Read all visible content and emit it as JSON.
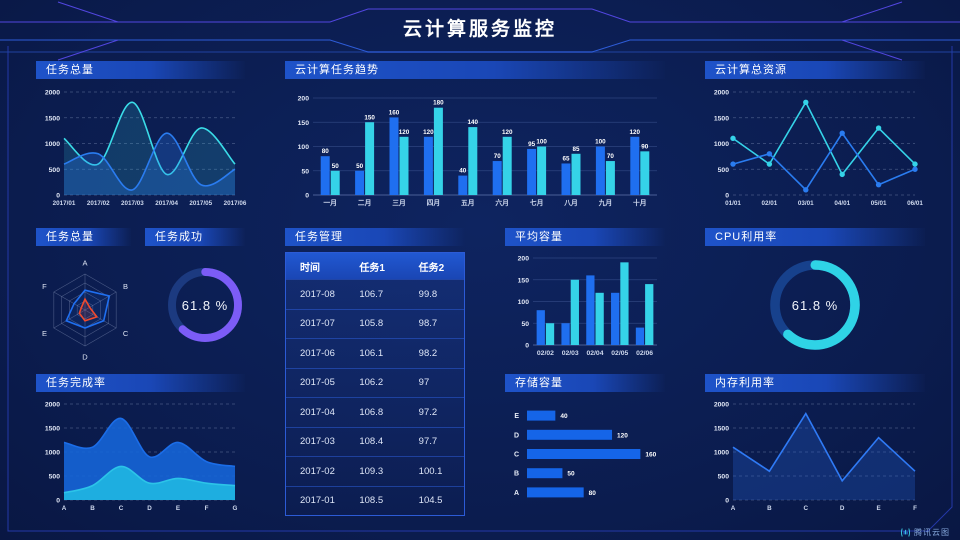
{
  "page_title": "云计算服务监控",
  "footer": {
    "logo_text": "腾讯云图"
  },
  "palette": {
    "blue": "#1f6ff0",
    "cyan": "#35d3e8",
    "purple": "#7c5cf6",
    "red": "#f04a2e",
    "background_navy": "#0c1e52",
    "header_gradient_blue": "#1e53c9"
  },
  "chart_data": [
    {
      "id": "tasks-total-line",
      "type": "line",
      "title": "任务总量",
      "smooth": true,
      "x": [
        "2017/01",
        "2017/02",
        "2017/03",
        "2017/04",
        "2017/05",
        "2017/06"
      ],
      "series": [
        {
          "color": "#3adce8",
          "fill": "rgba(58,220,232,0.16)",
          "values": [
            1100,
            600,
            1800,
            400,
            1300,
            600
          ]
        },
        {
          "color": "#2a7cf0",
          "fill": "rgba(42,124,240,0.28)",
          "values": [
            600,
            800,
            100,
            1200,
            200,
            500
          ]
        }
      ],
      "yticks": [
        0,
        500,
        1000,
        1500,
        2000
      ],
      "ylim": [
        0,
        2000
      ],
      "grid_dashed": true
    },
    {
      "id": "cloud-task-trend-bars",
      "type": "bar",
      "title": "云计算任务趋势",
      "categories": [
        "一月",
        "二月",
        "三月",
        "四月",
        "五月",
        "六月",
        "七月",
        "八月",
        "九月",
        "十月"
      ],
      "series": [
        {
          "color": "#1f6ff0",
          "values": [
            80,
            50,
            160,
            120,
            40,
            70,
            95,
            65,
            100,
            120
          ]
        },
        {
          "color": "#35d3e8",
          "values": [
            50,
            150,
            120,
            180,
            140,
            120,
            100,
            85,
            70,
            90
          ]
        }
      ],
      "yticks": [
        0,
        50,
        100,
        150,
        200
      ],
      "ylim": [
        0,
        200
      ],
      "value_labels": true
    },
    {
      "id": "cloud-resources-line",
      "type": "line",
      "title": "云计算总资源",
      "smooth": false,
      "markers": true,
      "x": [
        "01/01",
        "02/01",
        "03/01",
        "04/01",
        "05/01",
        "06/01"
      ],
      "series": [
        {
          "color": "#35d3e8",
          "values": [
            1100,
            600,
            1800,
            400,
            1300,
            600
          ]
        },
        {
          "color": "#2a7cf0",
          "values": [
            600,
            800,
            100,
            1200,
            200,
            500
          ]
        }
      ],
      "yticks": [
        0,
        500,
        1000,
        1500,
        2000
      ],
      "ylim": [
        0,
        2000
      ],
      "grid_dashed": true
    },
    {
      "id": "tasks-radar",
      "type": "radar",
      "title": "任务总量",
      "axes": [
        "A",
        "B",
        "C",
        "D",
        "E",
        "F"
      ],
      "max": 100,
      "series": [
        {
          "color": "#1f6ff0",
          "fill": "rgba(31,111,240,0.10)",
          "values": [
            55,
            78,
            60,
            50,
            60,
            35
          ]
        },
        {
          "color": "#f04a2e",
          "fill": "rgba(240,74,46,0.15)",
          "values": [
            30,
            15,
            38,
            30,
            18,
            12
          ]
        }
      ]
    },
    {
      "id": "task-success-donut",
      "type": "donut",
      "title": "任务成功",
      "value": 61.8,
      "label": "61.8 %",
      "color": "#7c5cf6",
      "track": "#1c3a80"
    },
    {
      "id": "task-management-table",
      "type": "table",
      "title": "任务管理",
      "headers": [
        "时间",
        "任务1",
        "任务2"
      ],
      "rows": [
        [
          "2017-08",
          "106.7",
          "99.8"
        ],
        [
          "2017-07",
          "105.8",
          "98.7"
        ],
        [
          "2017-06",
          "106.1",
          "98.2"
        ],
        [
          "2017-05",
          "106.2",
          "97"
        ],
        [
          "2017-04",
          "106.8",
          "97.2"
        ],
        [
          "2017-03",
          "108.4",
          "97.7"
        ],
        [
          "2017-02",
          "109.3",
          "100.1"
        ],
        [
          "2017-01",
          "108.5",
          "104.5"
        ]
      ]
    },
    {
      "id": "avg-capacity-bars",
      "type": "bar",
      "title": "平均容量",
      "categories": [
        "02/02",
        "02/03",
        "02/04",
        "02/05",
        "02/06"
      ],
      "series": [
        {
          "color": "#1f6ff0",
          "values": [
            80,
            50,
            160,
            120,
            40
          ]
        },
        {
          "color": "#35d3e8",
          "values": [
            50,
            150,
            120,
            190,
            140
          ]
        }
      ],
      "yticks": [
        0,
        50,
        100,
        150,
        200
      ],
      "ylim": [
        0,
        200
      ]
    },
    {
      "id": "cpu-usage-donut",
      "type": "donut",
      "title": "CPU利用率",
      "value": 61.8,
      "label": "61.8 %",
      "color": "#2fd3e6",
      "track": "#17418c"
    },
    {
      "id": "completion-area",
      "type": "line",
      "title": "任务完成率",
      "smooth": true,
      "x": [
        "A",
        "B",
        "C",
        "D",
        "E",
        "F",
        "G"
      ],
      "series": [
        {
          "color": "#1b6de8",
          "fill": "rgba(21,101,216,0.90)",
          "values": [
            1200,
            1100,
            1700,
            900,
            1200,
            800,
            700
          ]
        },
        {
          "color": "#2cc4e8",
          "fill": "rgba(31,178,224,0.95)",
          "values": [
            150,
            300,
            700,
            350,
            450,
            350,
            300
          ]
        }
      ],
      "yticks": [
        0,
        500,
        1000,
        1500,
        2000
      ],
      "ylim": [
        0,
        2000
      ],
      "grid_dashed": true
    },
    {
      "id": "storage-hbar",
      "type": "hbar",
      "title": "存储容量",
      "categories": [
        "E",
        "D",
        "C",
        "B",
        "A"
      ],
      "values": [
        40,
        120,
        160,
        50,
        80
      ],
      "color": "#1565e8",
      "xlim": [
        0,
        175
      ],
      "value_labels": true
    },
    {
      "id": "memory-line",
      "type": "line",
      "title": "内存利用率",
      "smooth": false,
      "x": [
        "A",
        "B",
        "C",
        "D",
        "E",
        "F"
      ],
      "series": [
        {
          "color": "#2f7af5",
          "fill": "rgba(35,95,210,0.30)",
          "values": [
            1100,
            600,
            1800,
            400,
            1300,
            600
          ]
        }
      ],
      "yticks": [
        0,
        500,
        1000,
        1500,
        2000
      ],
      "ylim": [
        0,
        2000
      ],
      "grid_dashed": true
    }
  ]
}
